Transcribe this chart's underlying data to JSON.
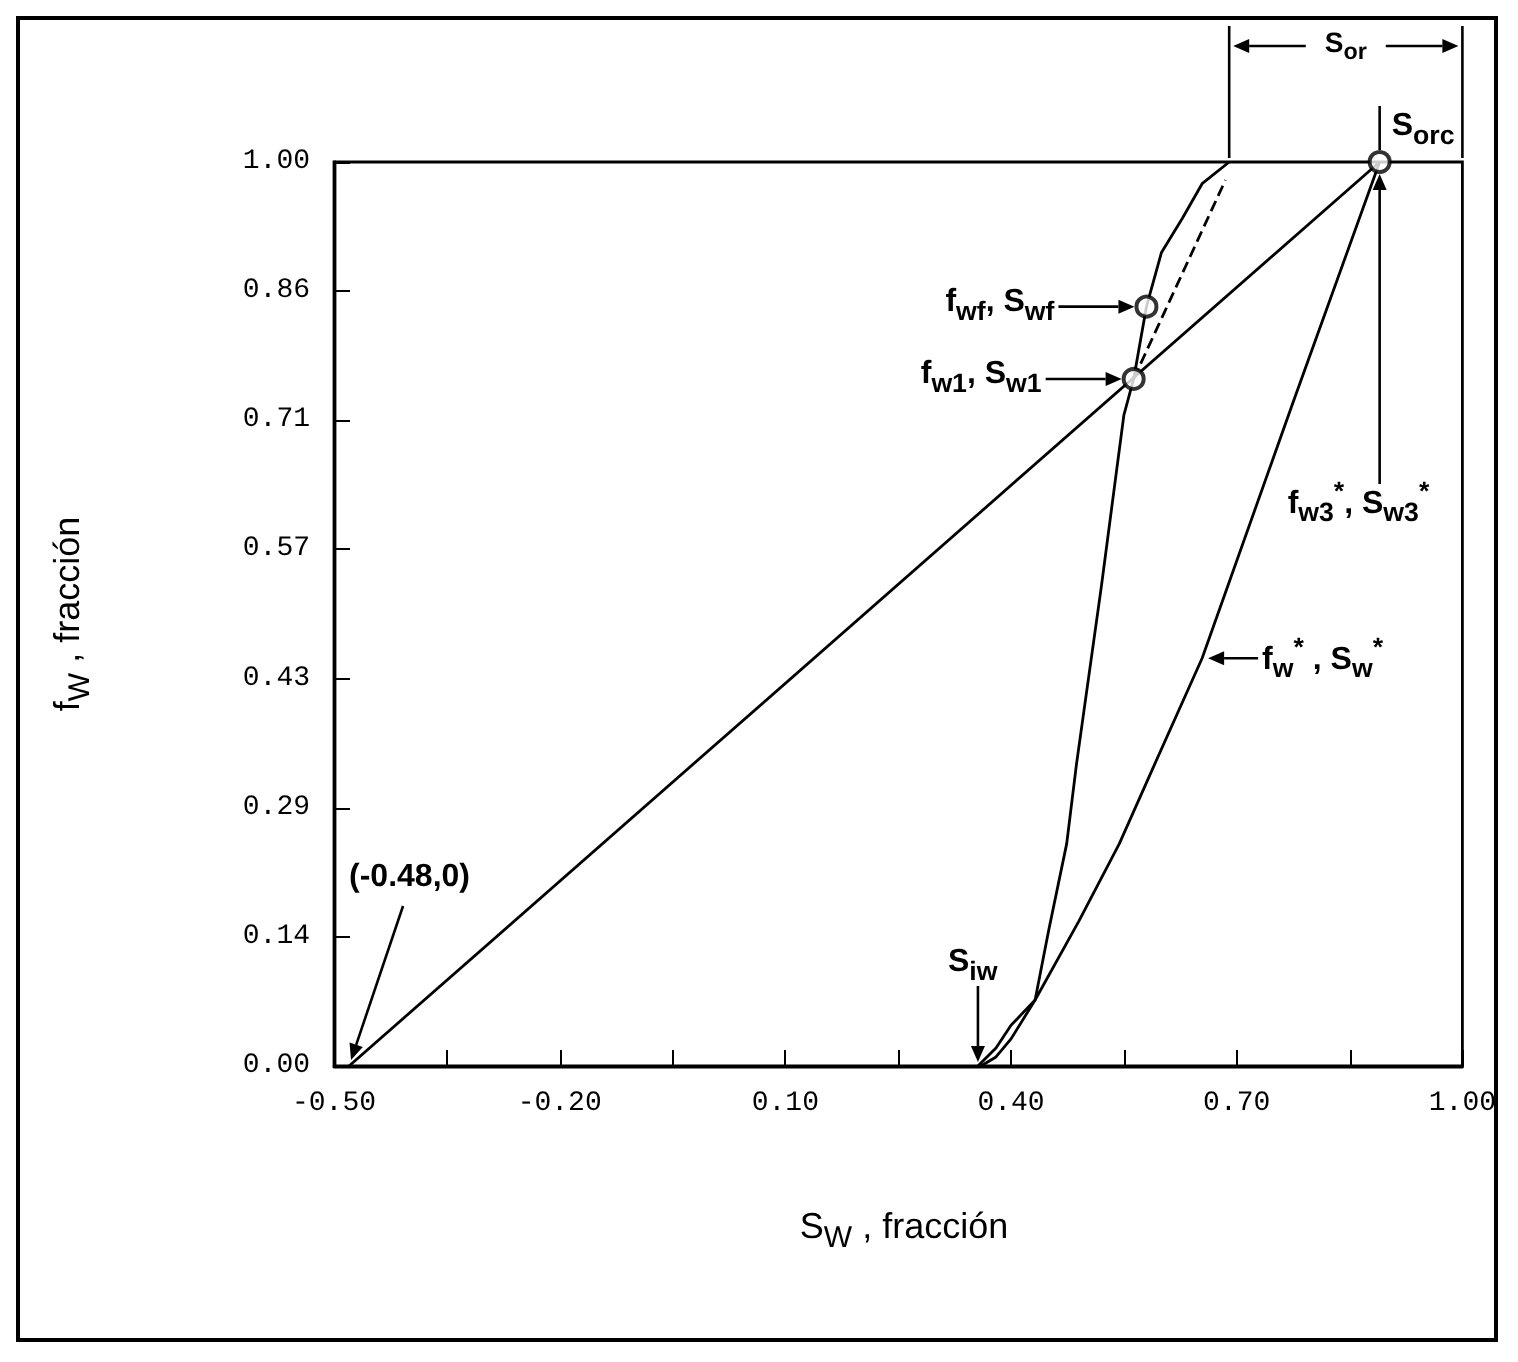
{
  "chart_data": {
    "type": "line",
    "xlabel": "S$_{W}$ , fracción",
    "ylabel": "f$_{W}$ , fracción",
    "xlim": [
      -0.5,
      1.0
    ],
    "xticks": [
      {
        "value": -0.5,
        "label": "-0.50"
      },
      {
        "value": -0.35,
        "label": null
      },
      {
        "value": -0.2,
        "label": "-0.20"
      },
      {
        "value": -0.05,
        "label": null
      },
      {
        "value": 0.1,
        "label": "0.10"
      },
      {
        "value": 0.25,
        "label": null
      },
      {
        "value": 0.4,
        "label": "0.40"
      },
      {
        "value": 0.55,
        "label": null
      },
      {
        "value": 0.7,
        "label": "0.70"
      },
      {
        "value": 0.85,
        "label": null
      },
      {
        "value": 1.0,
        "label": "1.00"
      }
    ],
    "ylim": [
      0,
      1.0
    ],
    "yticks": [
      {
        "value": 0,
        "label": "0.00"
      },
      {
        "value": 0.1429,
        "label": "0.14"
      },
      {
        "value": 0.2857,
        "label": "0.29"
      },
      {
        "value": 0.4286,
        "label": "0.43"
      },
      {
        "value": 0.5714,
        "label": "0.57"
      },
      {
        "value": 0.7143,
        "label": "0.71"
      },
      {
        "value": 0.8571,
        "label": "0.86"
      },
      {
        "value": 1.0,
        "label": "1.00"
      }
    ],
    "grid": false,
    "marker": "none",
    "line_style": "solid",
    "series": [
      {
        "color": "#000000",
        "x": [
          -0.48,
          0.89
        ],
        "values": [
          0,
          1.0
        ]
      },
      {
        "color": "#000000",
        "x": [
          0.36,
          0.38,
          0.4,
          0.432,
          0.45,
          0.474,
          0.487,
          0.52,
          0.55,
          0.563,
          0.58,
          0.6,
          0.628,
          0.654,
          0.69
        ],
        "values": [
          0,
          0.01,
          0.03,
          0.073,
          0.15,
          0.246,
          0.334,
          0.53,
          0.72,
          0.76,
          0.84,
          0.9,
          0.938,
          0.976,
          1.0
        ]
      },
      {
        "color": "#000000",
        "x": [
          0.356,
          0.38,
          0.4,
          0.432,
          0.49,
          0.544,
          0.591,
          0.654,
          0.774,
          0.89
        ],
        "values": [
          0,
          0.02,
          0.045,
          0.073,
          0.16,
          0.246,
          0.334,
          0.451,
          0.732,
          1.0
        ]
      },
      {
        "color": "#000000",
        "line_style": "dashed",
        "x": [
          0.563,
          0.685
        ],
        "values": [
          0.76,
          0.98
        ]
      },
      {
        "type": "scatter",
        "marker": "circle",
        "color": "#000000",
        "x": [
          0.563,
          0.58,
          0.89
        ],
        "values": [
          0.76,
          0.84,
          1.0
        ]
      }
    ],
    "annotations": [
      "(-0.48,0)",
      {
        "text": "S$_{iw}$",
        "x": 0.356,
        "y": 0
      },
      {
        "text": "f$_{wf}$, S$_{wf}$",
        "x": 0.58,
        "y": 0.84
      },
      {
        "text": "f$_{w1}$, S$_{w1}$",
        "x": 0.563,
        "y": 0.76
      },
      {
        "text": "S$_{orc}$",
        "x": 0.89,
        "y": 1.0
      },
      "f$_{w3}$$^{*}$, S$_{w3}$$^{*}$",
      {
        "text": "f$_{w}$$^{*}$ , S$_{w}$$^{*}$",
        "x": 0.654,
        "y": 0.451
      },
      "S$_{or}$"
    ]
  }
}
